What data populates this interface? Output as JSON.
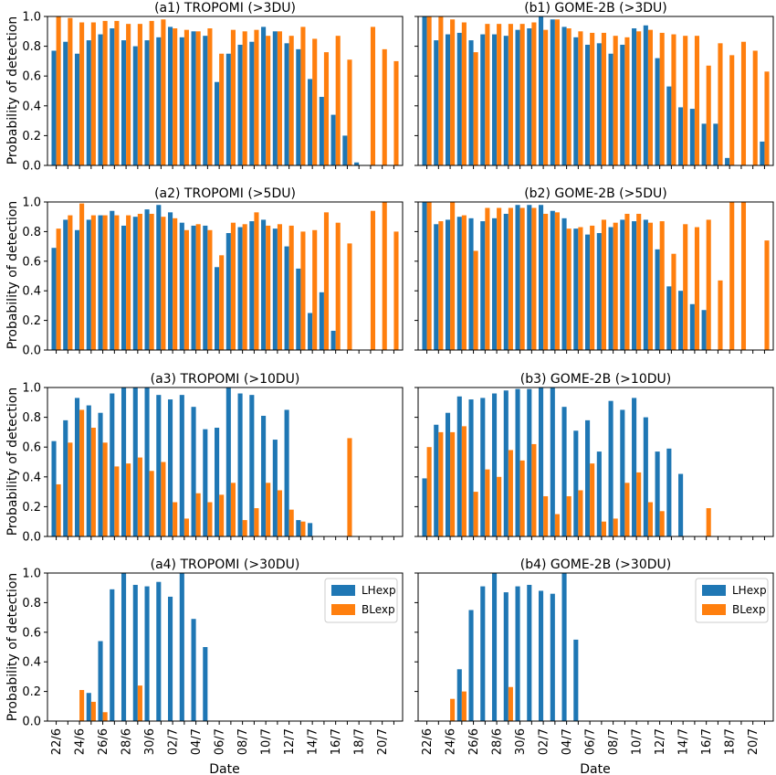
{
  "colors": {
    "series_a": "#1f77b4",
    "series_b": "#ff7f0e"
  },
  "chart_data": {
    "type": "bar",
    "ylabel": "Probability of detection",
    "xlabel": "Date",
    "ylim": [
      0,
      1.0
    ],
    "yticks": [
      "0.0",
      "0.2",
      "0.4",
      "0.6",
      "0.8",
      "1.0"
    ],
    "categories": [
      "22/6",
      "23/6",
      "24/6",
      "25/6",
      "26/6",
      "27/6",
      "28/6",
      "29/6",
      "30/6",
      "01/7",
      "02/7",
      "03/7",
      "04/7",
      "05/7",
      "06/7",
      "07/7",
      "08/7",
      "09/7",
      "10/7",
      "11/7",
      "12/7",
      "13/7",
      "14/7",
      "15/7",
      "16/7",
      "17/7",
      "18/7",
      "19/7",
      "20/7",
      "21/7"
    ],
    "x_tick_labels": [
      "22/6",
      "24/6",
      "26/6",
      "28/6",
      "30/6",
      "02/7",
      "04/7",
      "06/7",
      "08/7",
      "10/7",
      "12/7",
      "14/7",
      "16/7",
      "18/7",
      "20/7"
    ],
    "legend": {
      "entries": [
        "LHexp",
        "BLexp"
      ],
      "placement": "upper right",
      "panels": [
        6,
        7
      ]
    },
    "panels": [
      {
        "title": "(a1) TROPOMI (>3DU)",
        "series": [
          {
            "name": "LHexp",
            "values": [
              0.77,
              0.83,
              0.75,
              0.84,
              0.88,
              0.92,
              0.84,
              0.8,
              0.84,
              0.86,
              0.93,
              0.86,
              0.9,
              0.87,
              0.56,
              0.75,
              0.81,
              0.83,
              0.93,
              0.9,
              0.82,
              0.78,
              0.58,
              0.46,
              0.34,
              0.2,
              0.02,
              0,
              0,
              0
            ]
          },
          {
            "name": "BLexp",
            "values": [
              1.0,
              0.99,
              0.96,
              0.96,
              0.97,
              0.97,
              0.95,
              0.95,
              0.97,
              0.98,
              0.92,
              0.91,
              0.9,
              0.92,
              0.75,
              0.91,
              0.9,
              0.91,
              0.87,
              0.9,
              0.87,
              0.93,
              0.85,
              0.76,
              0.87,
              0.71,
              0,
              0.93,
              0.78,
              0.7
            ]
          }
        ]
      },
      {
        "title": "(b1) GOME-2B (>3DU)",
        "series": [
          {
            "name": "LHexp",
            "values": [
              1.0,
              0.84,
              0.88,
              0.89,
              0.84,
              0.88,
              0.88,
              0.87,
              0.91,
              0.92,
              1.0,
              0.98,
              0.93,
              0.86,
              0.81,
              0.82,
              0.75,
              0.81,
              0.92,
              0.94,
              0.72,
              0.53,
              0.39,
              0.38,
              0.28,
              0.28,
              0.05,
              0,
              0,
              0.16
            ]
          },
          {
            "name": "BLexp",
            "values": [
              1.0,
              1.0,
              0.98,
              0.96,
              0.76,
              0.95,
              0.95,
              0.95,
              0.95,
              0.96,
              0.91,
              0.98,
              0.92,
              0.9,
              0.89,
              0.89,
              0.87,
              0.86,
              0.9,
              0.91,
              0.89,
              0.88,
              0.87,
              0.87,
              0.67,
              0.82,
              0.74,
              0.83,
              0.77,
              0.63
            ]
          }
        ]
      },
      {
        "title": "(a2) TROPOMI (>5DU)",
        "series": [
          {
            "name": "LHexp",
            "values": [
              0.69,
              0.88,
              0.81,
              0.88,
              0.91,
              0.94,
              0.84,
              0.9,
              0.95,
              0.98,
              0.93,
              0.86,
              0.84,
              0.84,
              0.56,
              0.79,
              0.83,
              0.87,
              0.88,
              0.82,
              0.7,
              0.55,
              0.25,
              0.39,
              0.13,
              0,
              0,
              0,
              0,
              0
            ]
          },
          {
            "name": "BLexp",
            "values": [
              0.82,
              0.91,
              0.99,
              0.91,
              0.91,
              0.91,
              0.91,
              0.92,
              0.92,
              0.9,
              0.89,
              0.81,
              0.85,
              0.81,
              0.64,
              0.86,
              0.85,
              0.93,
              0.84,
              0.85,
              0.84,
              0.8,
              0.81,
              0.93,
              0.86,
              0.72,
              0,
              0.94,
              1.0,
              0.8
            ]
          }
        ]
      },
      {
        "title": "(b2) GOME-2B (>5DU)",
        "series": [
          {
            "name": "LHexp",
            "values": [
              1.0,
              0.85,
              0.88,
              0.9,
              0.89,
              0.87,
              0.89,
              0.92,
              0.98,
              0.98,
              0.98,
              0.94,
              0.89,
              0.82,
              0.78,
              0.79,
              0.83,
              0.88,
              0.87,
              0.88,
              0.68,
              0.43,
              0.4,
              0.31,
              0.27,
              0,
              0,
              0,
              0,
              0
            ]
          },
          {
            "name": "BLexp",
            "values": [
              1.0,
              0.87,
              1.0,
              0.91,
              0.67,
              0.96,
              0.96,
              0.96,
              0.96,
              0.96,
              0.92,
              0.93,
              0.82,
              0.83,
              0.84,
              0.88,
              0.86,
              0.92,
              0.92,
              0.86,
              0.87,
              0.65,
              0.85,
              0.83,
              0.88,
              0.47,
              1.0,
              1.0,
              0,
              0.74
            ]
          }
        ]
      },
      {
        "title": "(a3) TROPOMI (>10DU)",
        "series": [
          {
            "name": "LHexp",
            "values": [
              0.64,
              0.78,
              0.93,
              0.88,
              0.83,
              0.96,
              1.0,
              1.0,
              1.0,
              0.95,
              0.92,
              0.95,
              0.87,
              0.72,
              0.73,
              1.0,
              0.96,
              0.95,
              0.81,
              0.65,
              0.85,
              0.11,
              0.09,
              0,
              0,
              0,
              0,
              0,
              0,
              0
            ]
          },
          {
            "name": "BLexp",
            "values": [
              0.35,
              0.63,
              0.85,
              0.73,
              0.63,
              0.47,
              0.49,
              0.53,
              0.44,
              0.5,
              0.23,
              0.12,
              0.29,
              0.23,
              0.28,
              0.36,
              0.11,
              0.19,
              0.36,
              0.31,
              0.18,
              0.1,
              0,
              0,
              0,
              0.66,
              0,
              0,
              0,
              0
            ]
          }
        ]
      },
      {
        "title": "(b3) GOME-2B (>10DU)",
        "series": [
          {
            "name": "LHexp",
            "values": [
              0.39,
              0.75,
              0.83,
              0.94,
              0.92,
              0.93,
              0.96,
              0.98,
              0.99,
              0.99,
              1.0,
              1.0,
              0.87,
              0.71,
              0.78,
              0.57,
              0.91,
              0.85,
              0.93,
              0.8,
              0.57,
              0.59,
              0.42,
              0,
              0,
              0,
              0,
              0,
              0,
              0
            ]
          },
          {
            "name": "BLexp",
            "values": [
              0.6,
              0.7,
              0.7,
              0.74,
              0.3,
              0.45,
              0.4,
              0.58,
              0.51,
              0.62,
              0.27,
              0.15,
              0.27,
              0.31,
              0.49,
              0.1,
              0.12,
              0.36,
              0.43,
              0.23,
              0.17,
              0,
              0,
              0,
              0.19,
              0,
              0,
              0,
              0,
              0
            ]
          }
        ]
      },
      {
        "title": "(a4) TROPOMI (>30DU)",
        "series": [
          {
            "name": "LHexp",
            "values": [
              0,
              0,
              0,
              0.19,
              0.54,
              0.89,
              1.0,
              0.92,
              0.91,
              0.94,
              0.84,
              1.0,
              0.69,
              0.5,
              0,
              0,
              0,
              0,
              0,
              0,
              0,
              0,
              0,
              0,
              0,
              0,
              0,
              0,
              0,
              0
            ]
          },
          {
            "name": "BLexp",
            "values": [
              0,
              0,
              0.21,
              0.13,
              0.06,
              0,
              0,
              0.24,
              0,
              0,
              0,
              0,
              0,
              0,
              0,
              0,
              0,
              0,
              0,
              0,
              0,
              0,
              0,
              0,
              0,
              0,
              0,
              0,
              0,
              0
            ]
          }
        ]
      },
      {
        "title": "(b4) GOME-2B (>30DU)",
        "series": [
          {
            "name": "LHexp",
            "values": [
              0,
              0,
              0,
              0.35,
              0.75,
              0.91,
              1.0,
              0.87,
              0.91,
              0.92,
              0.88,
              0.86,
              1.0,
              0.55,
              0,
              0,
              0,
              0,
              0,
              0,
              0,
              0,
              0,
              0,
              0,
              0,
              0,
              0,
              0,
              0
            ]
          },
          {
            "name": "BLexp",
            "values": [
              0,
              0,
              0.15,
              0.2,
              0,
              0,
              0,
              0.23,
              0,
              0,
              0,
              0,
              0,
              0,
              0,
              0,
              0,
              0,
              0,
              0,
              0,
              0,
              0,
              0,
              0,
              0,
              0,
              0,
              0,
              0
            ]
          }
        ]
      }
    ]
  }
}
